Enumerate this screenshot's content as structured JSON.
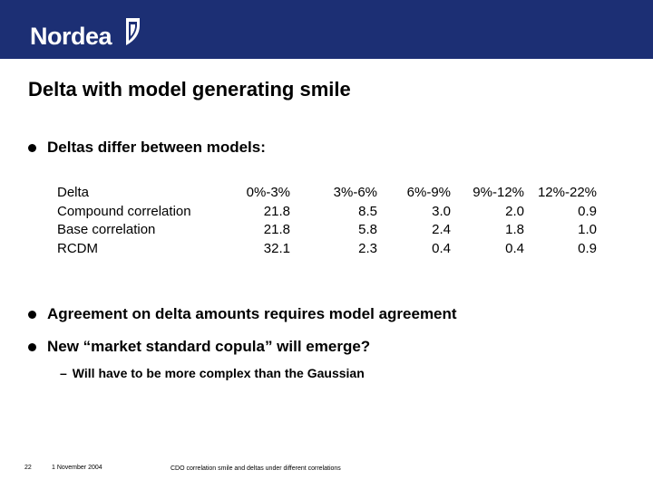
{
  "header": {
    "brand": "Nordea",
    "colors": {
      "background": "#1c2f74",
      "text": "#ffffff"
    }
  },
  "slide": {
    "title": "Delta with model generating smile",
    "bullets": [
      "Deltas differ between models:",
      "Agreement on delta amounts requires model agreement",
      "New “market standard copula” will emerge?"
    ],
    "sub_bullet": {
      "dash": "–",
      "text": "Will have to be more complex than the Gaussian"
    },
    "table": {
      "headers": [
        "Delta",
        "0%-3%",
        "3%-6%",
        "6%-9%",
        "9%-12%",
        "12%-22%"
      ],
      "rows": [
        [
          "Compound correlation",
          "21.8",
          "8.5",
          "3.0",
          "2.0",
          "0.9"
        ],
        [
          "Base correlation",
          "21.8",
          "5.8",
          "2.4",
          "1.8",
          "1.0"
        ],
        [
          "RCDM",
          "32.1",
          "2.3",
          "0.4",
          "0.4",
          "0.9"
        ]
      ]
    }
  },
  "footer": {
    "page_number": "22",
    "date": "1 November 2004",
    "note": "CDO correlation smile and deltas under different correlations"
  }
}
